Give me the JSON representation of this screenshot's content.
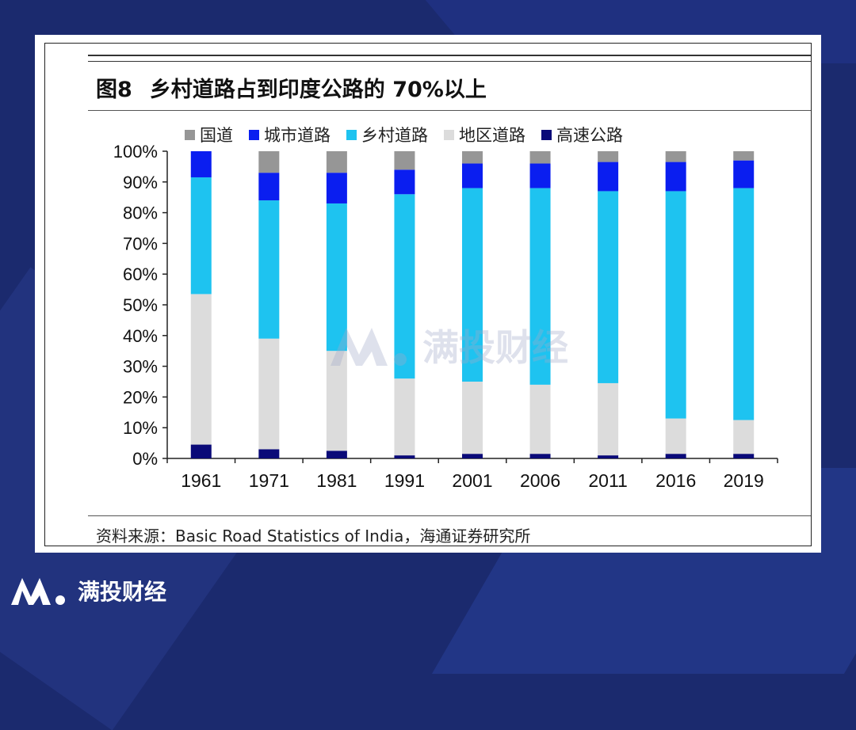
{
  "title_num": "图8",
  "title_text": "乡村道路占到印度公路的 70%以上",
  "source_text": "资料来源：Basic Road Statistics of India，海通证券研究所",
  "watermark_text": "满投财经",
  "footer_text": "满投财经",
  "colors": {
    "background": "#1b2a6e",
    "national": "#969696",
    "urban": "#0a1ef0",
    "rural": "#1ec3f0",
    "district": "#dcdcdc",
    "expressway": "#0a0a78"
  },
  "chart_data": {
    "type": "bar",
    "stacked": true,
    "categories": [
      "1961",
      "1971",
      "1981",
      "1991",
      "2001",
      "2006",
      "2011",
      "2016",
      "2019"
    ],
    "series": [
      {
        "name": "高速公路",
        "color": "#0a0a78",
        "values": [
          4.5,
          3.0,
          2.5,
          1.0,
          1.5,
          1.5,
          1.0,
          1.5,
          1.5
        ]
      },
      {
        "name": "地区道路",
        "color": "#dcdcdc",
        "values": [
          49.0,
          36.0,
          32.5,
          25.0,
          23.5,
          22.5,
          23.5,
          11.5,
          11.0
        ]
      },
      {
        "name": "乡村道路",
        "color": "#1ec3f0",
        "values": [
          38.0,
          45.0,
          48.0,
          60.0,
          63.0,
          64.0,
          62.5,
          74.0,
          75.5
        ]
      },
      {
        "name": "城市道路",
        "color": "#0a1ef0",
        "values": [
          8.5,
          9.0,
          10.0,
          8.0,
          8.0,
          8.0,
          9.5,
          9.5,
          9.0
        ]
      },
      {
        "name": "国道",
        "color": "#969696",
        "values": [
          0.0,
          7.0,
          7.0,
          6.0,
          4.0,
          4.0,
          3.5,
          3.5,
          3.0
        ]
      }
    ],
    "legend_order": [
      "国道",
      "城市道路",
      "乡村道路",
      "地区道路",
      "高速公路"
    ],
    "ylim": [
      0,
      100
    ],
    "yticks": [
      "0%",
      "10%",
      "20%",
      "30%",
      "40%",
      "50%",
      "60%",
      "70%",
      "80%",
      "90%",
      "100%"
    ],
    "legend_position": "top",
    "grid": false
  }
}
